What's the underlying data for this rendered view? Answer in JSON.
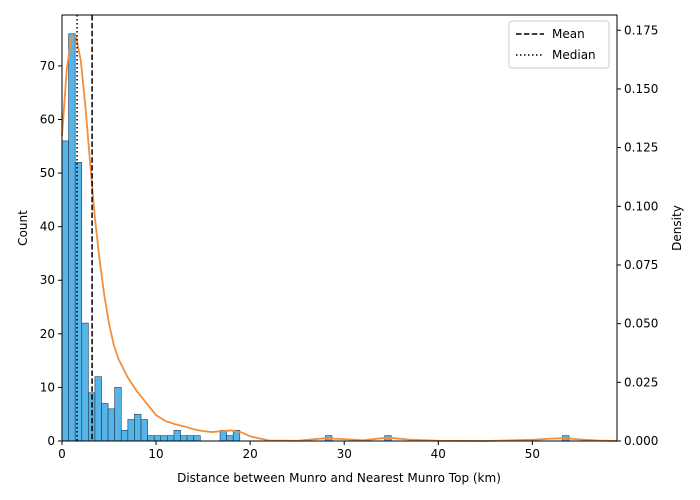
{
  "chart_data": {
    "type": "bar",
    "title": "",
    "xlabel": "Distance between Munro and Nearest Munro Top (km)",
    "ylabel": "Count",
    "y2label": "Density",
    "xlim": [
      0,
      59
    ],
    "ylim": [
      0,
      79.5
    ],
    "y2lim": [
      0,
      0.1815
    ],
    "grid": false,
    "legend_position": "top-right",
    "colors": {
      "bar_fill": "#56b4e9",
      "bar_edge": "#1f3a4d",
      "kde_line": "#f28e3c",
      "ref_lines": "#000000"
    },
    "x_ticks": [
      0,
      10,
      20,
      30,
      40,
      50
    ],
    "y_ticks": [
      0,
      10,
      20,
      30,
      40,
      50,
      60,
      70
    ],
    "y2_ticks": [
      "0.000",
      "0.025",
      "0.050",
      "0.075",
      "0.100",
      "0.125",
      "0.150",
      "0.175"
    ],
    "bin_width": 0.7,
    "bin_starts": [
      0,
      0.7,
      1.4,
      2.1,
      2.8,
      3.5,
      4.2,
      4.9,
      5.6,
      6.3,
      7.0,
      7.7,
      8.4,
      9.1,
      9.8,
      10.5,
      11.2,
      11.9,
      12.6,
      13.3,
      14.0,
      16.8,
      17.5,
      18.2,
      28.0,
      34.3,
      53.2
    ],
    "counts": [
      56,
      76,
      52,
      22,
      9,
      12,
      7,
      6,
      10,
      2,
      4,
      5,
      4,
      1,
      1,
      1,
      1,
      2,
      1,
      1,
      1,
      2,
      1,
      2,
      1,
      1,
      1
    ],
    "reference_lines": [
      {
        "name": "Mean",
        "x": 3.2,
        "style": "dashed"
      },
      {
        "name": "Median",
        "x": 1.6,
        "style": "dotted"
      }
    ],
    "kde": {
      "x": [
        0,
        0.5,
        1.0,
        1.5,
        2.0,
        2.5,
        3.0,
        3.5,
        4.0,
        4.5,
        5.0,
        5.5,
        6.0,
        7.0,
        8.0,
        9.0,
        10.0,
        11.0,
        12.0,
        13.0,
        14.0,
        15.0,
        16.0,
        17.0,
        18.0,
        19.0,
        20.0,
        22.0,
        25.0,
        28.0,
        30.0,
        32.0,
        34.0,
        35.0,
        37.0,
        40.0,
        45.0,
        50.0,
        52.0,
        53.5,
        55.0,
        57.0,
        59.0
      ],
      "density": [
        0.13,
        0.158,
        0.172,
        0.172,
        0.162,
        0.142,
        0.118,
        0.095,
        0.077,
        0.062,
        0.05,
        0.041,
        0.035,
        0.027,
        0.021,
        0.016,
        0.011,
        0.0085,
        0.0072,
        0.0062,
        0.005,
        0.0042,
        0.0038,
        0.0042,
        0.0045,
        0.0038,
        0.002,
        0.0002,
        0.0001,
        0.0012,
        0.0008,
        0.0003,
        0.0012,
        0.0013,
        0.0006,
        0.0001,
        0.0,
        0.0005,
        0.001,
        0.0012,
        0.0007,
        0.0002,
        0.0
      ]
    }
  },
  "legend": {
    "items": [
      {
        "label": "Mean",
        "style": "dashed"
      },
      {
        "label": "Median",
        "style": "dotted"
      }
    ]
  }
}
